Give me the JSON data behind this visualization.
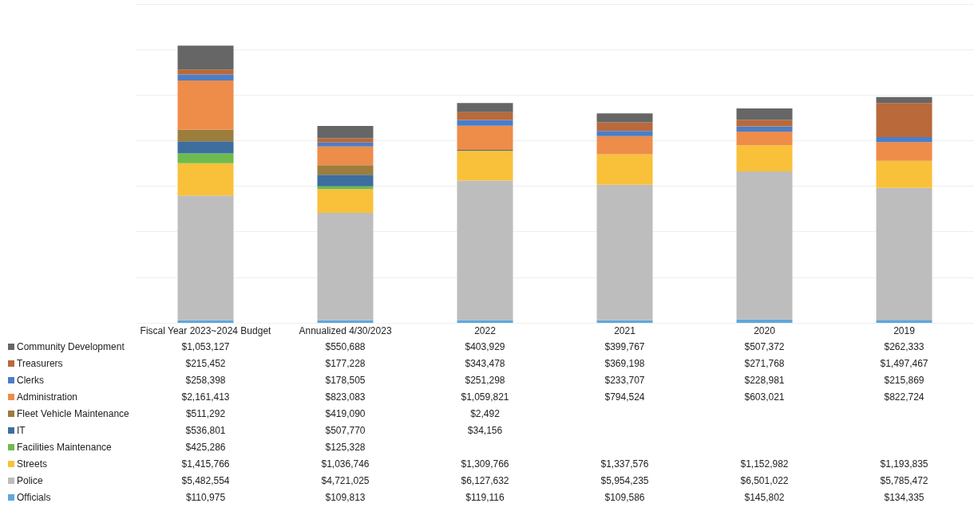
{
  "chart_data": {
    "type": "bar",
    "stacked": true,
    "categories": [
      "Fiscal Year 2023~2024 Budget",
      "Annualized 4/30/2023",
      "2022",
      "2021",
      "2020",
      "2019"
    ],
    "series": [
      {
        "name": "Officials",
        "color": "#5fa7dc",
        "values": [
          110975,
          109813,
          119116,
          109586,
          145802,
          134335
        ],
        "value_labels": [
          "$110,975",
          "$109,813",
          "$119,116",
          "$109,586",
          "$145,802",
          "$134,335"
        ]
      },
      {
        "name": "Police",
        "color": "#bdbdbd",
        "values": [
          5482554,
          4721025,
          6127632,
          5954235,
          6501022,
          5785472
        ],
        "value_labels": [
          "$5,482,554",
          "$4,721,025",
          "$6,127,632",
          "$5,954,235",
          "$6,501,022",
          "$5,785,472"
        ]
      },
      {
        "name": "Streets",
        "color": "#f9c03a",
        "values": [
          1415766,
          1036746,
          1309766,
          1337576,
          1152982,
          1193835
        ],
        "value_labels": [
          "$1,415,766",
          "$1,036,746",
          "$1,309,766",
          "$1,337,576",
          "$1,152,982",
          "$1,193,835"
        ]
      },
      {
        "name": "Facilities Maintenance",
        "color": "#6dbb4e",
        "values": [
          425286,
          125328,
          null,
          null,
          null,
          null
        ],
        "value_labels": [
          "$425,286",
          "$125,328",
          null,
          null,
          null,
          null
        ]
      },
      {
        "name": "IT",
        "color": "#3d6e9e",
        "values": [
          536801,
          507770,
          34156,
          null,
          null,
          null
        ],
        "value_labels": [
          "$536,801",
          "$507,770",
          "$34,156",
          null,
          null,
          null
        ]
      },
      {
        "name": "Fleet Vehicle Maintenance",
        "color": "#9c7d3c",
        "values": [
          511292,
          419090,
          2492,
          null,
          null,
          null
        ],
        "value_labels": [
          "$511,292",
          "$419,090",
          "$2,492",
          null,
          null,
          null
        ]
      },
      {
        "name": "Administration",
        "color": "#ee8c4a",
        "values": [
          2161413,
          823083,
          1059821,
          794524,
          603021,
          822724
        ],
        "value_labels": [
          "$2,161,413",
          "$823,083",
          "$1,059,821",
          "$794,524",
          "$603,021",
          "$822,724"
        ]
      },
      {
        "name": "Clerks",
        "color": "#4a7ec8",
        "values": [
          258398,
          178505,
          251298,
          233707,
          228981,
          215869
        ],
        "value_labels": [
          "$258,398",
          "$178,505",
          "$251,298",
          "$233,707",
          "$228,981",
          "$215,869"
        ]
      },
      {
        "name": "Treasurers",
        "color": "#b9693a",
        "values": [
          215452,
          177228,
          343478,
          369198,
          271768,
          1497467
        ],
        "value_labels": [
          "$215,452",
          "$177,228",
          "$343,478",
          "$369,198",
          "$271,768",
          "$1,497,467"
        ]
      },
      {
        "name": "Community Development",
        "color": "#666666",
        "values": [
          1053127,
          550688,
          403929,
          399767,
          507372,
          262333
        ],
        "value_labels": [
          "$1,053,127",
          "$550,688",
          "$403,929",
          "$399,767",
          "$507,372",
          "$262,333"
        ]
      }
    ],
    "ylim": [
      0,
      14000000
    ],
    "yticks": [
      {
        "value": 0,
        "label": null
      },
      {
        "value": 2000000,
        "label": null
      },
      {
        "value": 4000000,
        "label": null
      },
      {
        "value": 6000000,
        "label": null
      },
      {
        "value": 8000000,
        "label": null
      },
      {
        "value": 10000000,
        "label": null
      },
      {
        "value": 12000000,
        "label": null
      },
      {
        "value": 14000000,
        "label": null
      }
    ],
    "grid": "y",
    "legend": "bottom",
    "tick_labels": "x"
  }
}
